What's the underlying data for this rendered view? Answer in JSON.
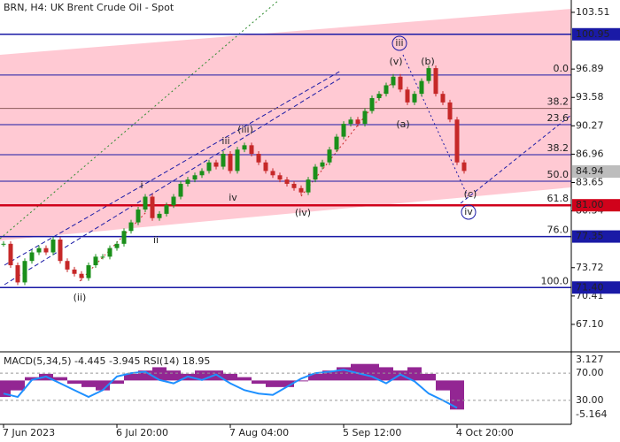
{
  "chart_data": {
    "type": "candlestick",
    "title": "BRN, H4:  UK Brent Crude Oil - Spot",
    "categories": [
      "7 Jun 2023",
      null,
      null,
      null,
      null,
      null,
      null,
      null,
      null,
      null,
      null,
      null,
      null,
      null,
      null,
      null,
      "6 Jul 20:00",
      null,
      null,
      null,
      null,
      null,
      null,
      null,
      null,
      null,
      null,
      null,
      null,
      null,
      null,
      null,
      "7 Aug 04:00",
      null,
      null,
      null,
      null,
      null,
      null,
      null,
      null,
      null,
      null,
      null,
      null,
      null,
      null,
      null,
      "5 Sep 12:00",
      null,
      null,
      null,
      null,
      null,
      null,
      null,
      null,
      null,
      null,
      null,
      null,
      null,
      null,
      null,
      "4 Oct 20:00",
      null
    ],
    "values": [
      76.5,
      74,
      72,
      74.5,
      75.5,
      76,
      75.5,
      77,
      74.5,
      73.5,
      73,
      72.5,
      74,
      75,
      75,
      76,
      76.5,
      78,
      79,
      80.5,
      82,
      79.5,
      80,
      81,
      82,
      83.5,
      84,
      84.5,
      85,
      86,
      85.5,
      87,
      85,
      87.5,
      88,
      87,
      86,
      85,
      84.5,
      84,
      83.5,
      83,
      82.5,
      84,
      85.5,
      86,
      87.5,
      89,
      90.5,
      91,
      90.5,
      92,
      93.5,
      94,
      95,
      96,
      94.5,
      93,
      94,
      95.5,
      97,
      94,
      93,
      91,
      86,
      85
    ],
    "up_color": "#1a8f1a",
    "down_color": "#c62828",
    "ylim": [
      64.0,
      104.95
    ],
    "yticks": [
      103.51,
      96.89,
      93.58,
      90.27,
      86.96,
      83.65,
      80.34,
      73.72,
      70.41,
      {
        "value": 67.1,
        "label": "67.10"
      }
    ],
    "price_markers": [
      {
        "value": 100.95,
        "color": "#1a1aa6",
        "line": true
      },
      {
        "value": 84.94,
        "color": "#bdbdbd",
        "line": false
      },
      {
        "value": 81,
        "label": "81.00",
        "color": "#d0021b",
        "line": true
      },
      {
        "value": 77.35,
        "color": "#1a1aa6",
        "line": true
      },
      {
        "value": 71.4,
        "label": "71.40",
        "color": "#1a1aa6",
        "line": true
      }
    ],
    "fib_levels": [
      {
        "label": "0.0",
        "value": 96.2,
        "color": "#1a1aa6"
      },
      {
        "label": "38.2",
        "value": 92.3,
        "color": "#8c5a5a"
      },
      {
        "label": "23.6",
        "value": 90.4,
        "color": "#1a1aa6"
      },
      {
        "label": "38.2",
        "value": 86.9,
        "color": "#1a1aa6"
      },
      {
        "label": "50.0",
        "value": 83.8,
        "color": "#1a1aa6"
      },
      {
        "label": "61.8",
        "value": 81.0,
        "color": "#d0021b"
      },
      {
        "label": "76.0",
        "value": 77.35,
        "color": "#1a1aa6"
      },
      {
        "label": "100.0",
        "value": 71.4,
        "color": "#1a1aa6"
      }
    ],
    "annotations": [
      {
        "text": "(ii)",
        "color": "#c62828",
        "circled": false
      },
      {
        "text": "i",
        "color": "#707070",
        "circled": false
      },
      {
        "text": "ii",
        "color": "#707070",
        "circled": false
      },
      {
        "text": "iii",
        "color": "#707070",
        "circled": false
      },
      {
        "text": "iv",
        "color": "#707070",
        "circled": false
      },
      {
        "text": "(iii)",
        "color": "#c62828",
        "circled": false
      },
      {
        "text": "(iv)",
        "color": "#c62828",
        "circled": false
      },
      {
        "text": "(v)",
        "color": "#c62828",
        "circled": false
      },
      {
        "text": "iii",
        "color": "#1a1aa6",
        "circled": true
      },
      {
        "text": "(a)",
        "color": "#c62828",
        "circled": false
      },
      {
        "text": "(b)",
        "color": "#c62828",
        "circled": false
      },
      {
        "text": "(c)",
        "color": "#c62828",
        "circled": false
      },
      {
        "text": "iv",
        "color": "#1a1aa6",
        "circled": true
      }
    ],
    "indicator": {
      "title": "MACD(5,34,5) -4.445 -3.945 RSI(14) 18.95",
      "macd_color": "#800080",
      "rsi_color": "#1e90ff",
      "macd_lim": [
        -5.164,
        3.127
      ],
      "macd_ticks": [
        3.127,
        -5.164
      ],
      "rsi_lim": [
        0,
        100
      ],
      "rsi_ticks": [
        {
          "value": 70,
          "label": "70.00"
        },
        {
          "value": 30,
          "label": "30.00"
        }
      ],
      "macd": [
        -2.5,
        -1.5,
        0.5,
        1,
        0.5,
        -0.5,
        -1,
        -1.5,
        -0.5,
        1,
        1.5,
        2,
        1.5,
        1,
        1.5,
        1.5,
        1,
        0.5,
        -0.5,
        -1,
        -1,
        0,
        1,
        1.5,
        2,
        2.5,
        2.5,
        2,
        1.5,
        2,
        1,
        -1.5,
        -4.4
      ],
      "rsi": [
        40,
        35,
        60,
        65,
        55,
        45,
        35,
        45,
        65,
        70,
        72,
        60,
        55,
        65,
        60,
        68,
        55,
        45,
        40,
        38,
        50,
        62,
        70,
        72,
        75,
        70,
        65,
        55,
        68,
        58,
        40,
        30,
        19
      ]
    }
  }
}
